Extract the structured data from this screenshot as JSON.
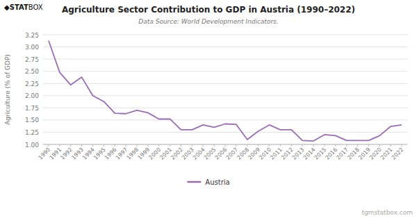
{
  "chart_data": {
    "type": "line",
    "title": "Agriculture Sector Contribution to GDP in Austria (1990–2022)",
    "subtitle": "Data Source: World Development Indicators.",
    "y_label": "Agriculture (% of GDP)",
    "annotations": [
      "◆",
      "STAT",
      "BOX",
      "tgmstatbox.com"
    ],
    "x": [
      1990,
      1991,
      1992,
      1993,
      1994,
      1995,
      1996,
      1997,
      1998,
      1999,
      2000,
      2001,
      2002,
      2003,
      2004,
      2005,
      2006,
      2007,
      2008,
      2009,
      2010,
      2011,
      2012,
      2013,
      2014,
      2015,
      2016,
      2017,
      2018,
      2019,
      2020,
      2021,
      2022
    ],
    "series": [
      {
        "name": "Austria",
        "color": "#9b6bb5",
        "values": [
          3.13,
          2.48,
          2.22,
          2.38,
          2.0,
          1.88,
          1.64,
          1.63,
          1.7,
          1.65,
          1.52,
          1.52,
          1.3,
          1.3,
          1.4,
          1.35,
          1.42,
          1.41,
          1.1,
          1.27,
          1.4,
          1.3,
          1.3,
          1.08,
          1.07,
          1.2,
          1.18,
          1.08,
          1.08,
          1.08,
          1.18,
          1.37,
          1.4
        ]
      }
    ],
    "xlim": [
      1989.5,
      2022.5
    ],
    "xticks": [
      1990,
      1991,
      1992,
      1993,
      1994,
      1995,
      1996,
      1997,
      1998,
      1999,
      2000,
      2001,
      2002,
      2003,
      2004,
      2005,
      2006,
      2007,
      2008,
      2009,
      2010,
      2011,
      2012,
      2013,
      2014,
      2015,
      2016,
      2017,
      2018,
      2019,
      2020,
      2021,
      2022
    ],
    "ylim": [
      1.0,
      3.25
    ],
    "yticks": [
      {
        "value": 1.0,
        "label": "1.00"
      },
      1.25,
      {
        "value": 1.5,
        "label": "1.50"
      },
      1.75,
      {
        "value": 2.0,
        "label": "2.00"
      },
      2.25,
      {
        "value": 2.5,
        "label": "2.50"
      },
      2.75,
      {
        "value": 3.0,
        "label": "3.00"
      },
      3.25
    ],
    "grid": true,
    "legend": "bottom"
  }
}
